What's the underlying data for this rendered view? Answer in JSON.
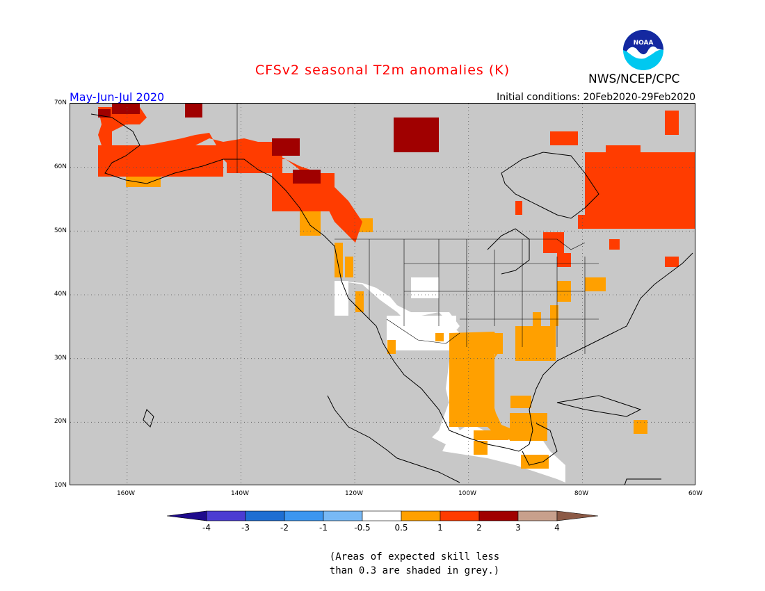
{
  "title": "CFSv2 seasonal T2m anomalies (K)",
  "org": "NWS/NCEP/CPC",
  "logo_text": "NOAA",
  "period": "May-Jun-Jul 2020",
  "initial_conditions": "Initial conditions: 20Feb2020-29Feb2020",
  "skill_note_line1": "(Areas of expected skill less",
  "skill_note_line2": "than 0.3 are shaded in grey.)",
  "colors": {
    "title": "#ff0000",
    "period": "#0000ff",
    "grey_mask": "#c8c8c8",
    "neutral": "#ffffff",
    "level_0_5_1": "#ffa000",
    "level_1_2": "#ff3c00",
    "level_2_3": "#a00000",
    "level_3_4": "#c8a08c"
  },
  "map": {
    "lon_range": [
      -170,
      -60
    ],
    "lat_range": [
      10,
      70
    ],
    "lat_labels": [
      "70N",
      "60N",
      "50N",
      "40N",
      "30N",
      "20N",
      "10N"
    ],
    "lon_labels": [
      "160W",
      "140W",
      "120W",
      "100W",
      "80W",
      "60W"
    ],
    "gridlines": "dotted"
  },
  "colorbar": {
    "labels": [
      "-4",
      "-3",
      "-2",
      "-1",
      "-0.5",
      "0.5",
      "1",
      "2",
      "3",
      "4"
    ],
    "colors": [
      "#1e0a8c",
      "#4b3cd2",
      "#1e6ed2",
      "#3c96f0",
      "#78b9f5",
      "#ffffff",
      "#ffa000",
      "#ff3c00",
      "#a00000",
      "#c8a08c",
      "#8c5a46"
    ]
  }
}
